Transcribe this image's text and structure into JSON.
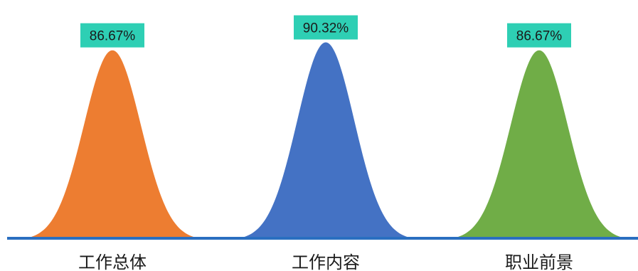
{
  "chart_data": {
    "type": "area",
    "categories": [
      "工作总体",
      "工作内容",
      "职业前景"
    ],
    "values": [
      86.67,
      90.32,
      86.67
    ],
    "value_labels": [
      "86.67%",
      "90.32%",
      "86.67%"
    ],
    "unit": "%",
    "colors": [
      "#ed7d31",
      "#4472c4",
      "#70ad47"
    ],
    "label_background": "#2ecfb4",
    "baseline_color": "#2a6fc0",
    "ylim": [
      0,
      100
    ],
    "legend": "none",
    "grid": false
  }
}
